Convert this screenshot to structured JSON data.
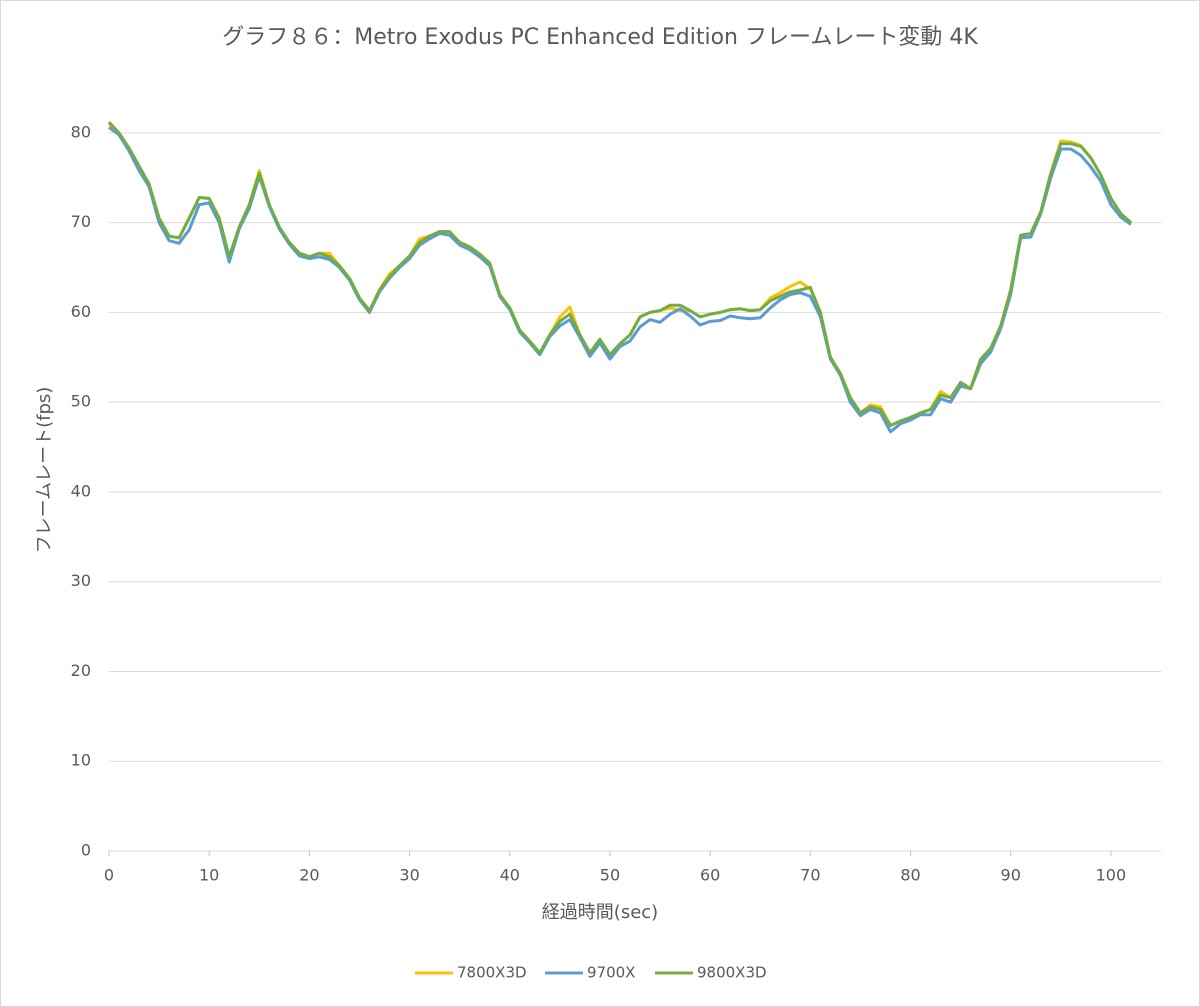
{
  "chart_data": {
    "type": "line",
    "title": "グラフ８６：Metro Exodus PC Enhanced Edition フレームレート変動 4K",
    "x_label": "経過時間(sec)",
    "y_label": "フレームレート(fps)",
    "x": [
      0,
      1,
      2,
      3,
      4,
      5,
      6,
      7,
      8,
      9,
      10,
      11,
      12,
      13,
      14,
      15,
      16,
      17,
      18,
      19,
      20,
      21,
      22,
      23,
      24,
      25,
      26,
      27,
      28,
      29,
      30,
      31,
      32,
      33,
      34,
      35,
      36,
      37,
      38,
      39,
      40,
      41,
      42,
      43,
      44,
      45,
      46,
      47,
      48,
      49,
      50,
      51,
      52,
      53,
      54,
      55,
      56,
      57,
      58,
      59,
      60,
      61,
      62,
      63,
      64,
      65,
      66,
      67,
      68,
      69,
      70,
      71,
      72,
      73,
      74,
      75,
      76,
      77,
      78,
      79,
      80,
      81,
      82,
      83,
      84,
      85,
      86,
      87,
      88,
      89,
      90,
      91,
      92,
      93,
      94,
      95,
      96,
      97,
      98,
      99,
      100,
      101,
      102
    ],
    "series": [
      {
        "name": "7800X3D",
        "color": "#FFC000",
        "values": [
          81,
          80,
          78.3,
          76.3,
          74,
          70.5,
          68.5,
          68.3,
          70.5,
          72.8,
          72.7,
          70.5,
          66.2,
          69.5,
          72,
          75.8,
          72,
          69.5,
          67.8,
          66.6,
          66.2,
          66.6,
          66.6,
          65.2,
          63.8,
          61.6,
          60.2,
          62.5,
          64.3,
          65.2,
          66.3,
          68.2,
          68.5,
          69,
          69,
          67.8,
          67.3,
          66.5,
          65.5,
          62,
          60.5,
          58,
          56.8,
          55.5,
          57.5,
          59.5,
          60.6,
          57.5,
          55.5,
          57,
          55.3,
          56.5,
          57.5,
          59.5,
          60,
          60.2,
          60.5,
          60.2,
          60.2,
          59.5,
          59.8,
          60,
          60.3,
          60.4,
          60.2,
          60.3,
          61.6,
          62.2,
          62.9,
          63.4,
          62.6,
          60,
          55,
          53.2,
          50.5,
          48.8,
          49.7,
          49.5,
          47.4,
          47.9,
          48.3,
          48.8,
          49.2,
          51.2,
          50.5,
          52.2,
          51.5,
          54.8,
          56,
          58.5,
          62.5,
          68.6,
          68.8,
          71.2,
          75.5,
          79.1,
          79,
          78.6,
          77.2,
          75.3,
          72.7,
          71,
          70
        ]
      },
      {
        "name": "9700X",
        "color": "#5B9BD5",
        "values": [
          80.6,
          79.8,
          78,
          75.8,
          74,
          70,
          68,
          67.7,
          69.2,
          72,
          72.2,
          70,
          65.6,
          69.3,
          71.6,
          75.2,
          71.8,
          69.3,
          67.6,
          66.3,
          66,
          66.2,
          65.9,
          65,
          63.6,
          61.4,
          60,
          62.3,
          63.8,
          65,
          66,
          67.5,
          68.2,
          68.8,
          68.6,
          67.5,
          67,
          66.2,
          65.2,
          61.8,
          60.3,
          57.8,
          56.6,
          55.3,
          57.3,
          58.5,
          59.2,
          57.2,
          55.1,
          56.6,
          54.8,
          56.2,
          56.8,
          58.4,
          59.2,
          58.9,
          59.8,
          60.4,
          59.6,
          58.6,
          59,
          59.1,
          59.6,
          59.4,
          59.3,
          59.4,
          60.5,
          61.4,
          62,
          62.2,
          61.8,
          59.5,
          54.8,
          53,
          50,
          48.5,
          49.2,
          48.8,
          46.7,
          47.6,
          48,
          48.6,
          48.6,
          50.4,
          50,
          51.8,
          51.5,
          54.3,
          55.6,
          58.2,
          62,
          68.3,
          68.4,
          71,
          75,
          78.2,
          78.2,
          77.5,
          76.2,
          74.6,
          72,
          70.6,
          69.8
        ]
      },
      {
        "name": "9800X3D",
        "color": "#70AD47",
        "values": [
          81.2,
          80,
          78.3,
          76.3,
          74.3,
          70.5,
          68.5,
          68.3,
          70.5,
          72.8,
          72.7,
          70.5,
          66.2,
          69.5,
          72,
          75.5,
          72,
          69.5,
          67.8,
          66.6,
          66.2,
          66.6,
          66.2,
          65.2,
          63.8,
          61.6,
          60.2,
          62.5,
          64,
          65.2,
          66.3,
          67.8,
          68.5,
          69,
          69,
          67.8,
          67.3,
          66.5,
          65.5,
          62,
          60.5,
          58,
          56.8,
          55.5,
          57.5,
          59,
          59.8,
          57.5,
          55.5,
          57,
          55.3,
          56.5,
          57.5,
          59.5,
          60,
          60.2,
          60.8,
          60.8,
          60.2,
          59.5,
          59.8,
          60,
          60.3,
          60.4,
          60.2,
          60.3,
          61.3,
          61.8,
          62.3,
          62.5,
          62.8,
          60,
          55,
          53.2,
          50.5,
          48.8,
          49.5,
          49.2,
          47.4,
          47.9,
          48.3,
          48.8,
          49.2,
          50.8,
          50.5,
          52.2,
          51.5,
          54.8,
          56,
          58.5,
          62.5,
          68.6,
          68.8,
          71.2,
          75.5,
          78.8,
          78.8,
          78.5,
          77.2,
          75.3,
          72.7,
          71,
          70
        ]
      }
    ],
    "xlim": [
      0,
      105
    ],
    "xticks": [
      0,
      10,
      20,
      30,
      40,
      50,
      60,
      70,
      80,
      90,
      100
    ],
    "ylim": [
      0,
      85
    ],
    "yticks": [
      0,
      10,
      20,
      30,
      40,
      50,
      60,
      70,
      80
    ],
    "grid": true,
    "legend": "bottom"
  }
}
